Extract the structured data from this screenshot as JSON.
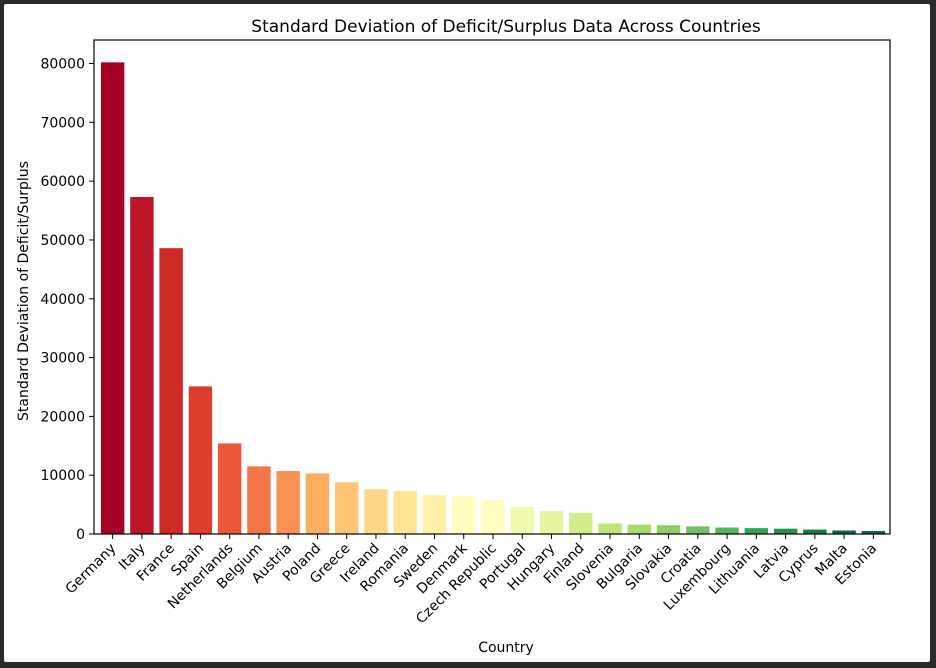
{
  "chart_data": {
    "type": "bar",
    "title": "Standard Deviation of Deficit/Surplus Data Across Countries",
    "xlabel": "Country",
    "ylabel": "Standard Deviation of Deficit/Surplus",
    "ylim": [
      0,
      84000
    ],
    "yticks": [
      0,
      10000,
      20000,
      30000,
      40000,
      50000,
      60000,
      70000,
      80000
    ],
    "grid": false,
    "colormap": "RdYlGn",
    "categories": [
      "Germany",
      "Italy",
      "France",
      "Spain",
      "Netherlands",
      "Belgium",
      "Austria",
      "Poland",
      "Greece",
      "Ireland",
      "Romania",
      "Sweden",
      "Denmark",
      "Czech Republic",
      "Portugal",
      "Hungary",
      "Finland",
      "Slovenia",
      "Bulgaria",
      "Slovakia",
      "Croatia",
      "Luxembourg",
      "Lithuania",
      "Latvia",
      "Cyprus",
      "Malta",
      "Estonia"
    ],
    "values": [
      80200,
      57300,
      48600,
      25100,
      15400,
      11500,
      10700,
      10300,
      8800,
      7600,
      7300,
      6600,
      6500,
      5800,
      4600,
      3900,
      3600,
      1800,
      1600,
      1500,
      1300,
      1100,
      1000,
      900,
      750,
      600,
      500
    ],
    "colors": [
      "#a50026",
      "#bb1526",
      "#cd2b26",
      "#dd3d2d",
      "#ea5839",
      "#f57547",
      "#f99153",
      "#fcad60",
      "#fdc574",
      "#fed685",
      "#fee593",
      "#fff1a8",
      "#fffebe",
      "#fffebf",
      "#f3fab0",
      "#e6f59d",
      "#d3ed89",
      "#bfe47a",
      "#a8da6e",
      "#8fcf66",
      "#72c266",
      "#54b55f",
      "#35a454",
      "#1d914b",
      "#0c7f43",
      "#006a3c",
      "#006837"
    ]
  }
}
